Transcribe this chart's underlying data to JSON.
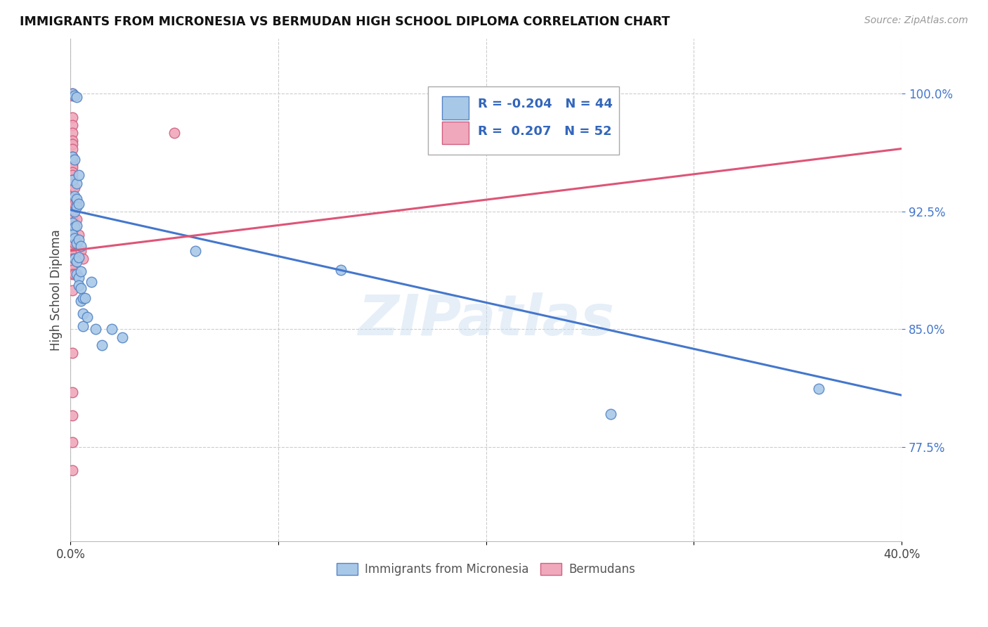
{
  "title": "IMMIGRANTS FROM MICRONESIA VS BERMUDAN HIGH SCHOOL DIPLOMA CORRELATION CHART",
  "source": "Source: ZipAtlas.com",
  "ylabel": "High School Diploma",
  "ytick_labels": [
    "77.5%",
    "85.0%",
    "92.5%",
    "100.0%"
  ],
  "ytick_values": [
    0.775,
    0.85,
    0.925,
    1.0
  ],
  "xlim": [
    0.0,
    0.4
  ],
  "ylim": [
    0.715,
    1.035
  ],
  "legend_blue_r": "-0.204",
  "legend_blue_n": "44",
  "legend_pink_r": "0.207",
  "legend_pink_n": "52",
  "blue_color": "#a8c8e8",
  "pink_color": "#f0a8bc",
  "blue_edge_color": "#5585c5",
  "pink_edge_color": "#d06080",
  "blue_line_color": "#4477cc",
  "pink_line_color": "#dd5577",
  "blue_scatter": [
    [
      0.001,
      1.0
    ],
    [
      0.002,
      0.999
    ],
    [
      0.003,
      0.998
    ],
    [
      0.001,
      0.96
    ],
    [
      0.002,
      0.958
    ],
    [
      0.001,
      0.945
    ],
    [
      0.003,
      0.943
    ],
    [
      0.004,
      0.948
    ],
    [
      0.002,
      0.935
    ],
    [
      0.003,
      0.933
    ],
    [
      0.002,
      0.925
    ],
    [
      0.003,
      0.928
    ],
    [
      0.004,
      0.93
    ],
    [
      0.001,
      0.918
    ],
    [
      0.002,
      0.915
    ],
    [
      0.003,
      0.916
    ],
    [
      0.001,
      0.91
    ],
    [
      0.002,
      0.908
    ],
    [
      0.003,
      0.905
    ],
    [
      0.004,
      0.907
    ],
    [
      0.005,
      0.903
    ],
    [
      0.002,
      0.895
    ],
    [
      0.003,
      0.893
    ],
    [
      0.004,
      0.896
    ],
    [
      0.003,
      0.885
    ],
    [
      0.004,
      0.883
    ],
    [
      0.005,
      0.887
    ],
    [
      0.004,
      0.878
    ],
    [
      0.005,
      0.876
    ],
    [
      0.005,
      0.868
    ],
    [
      0.006,
      0.87
    ],
    [
      0.006,
      0.86
    ],
    [
      0.006,
      0.852
    ],
    [
      0.007,
      0.87
    ],
    [
      0.008,
      0.858
    ],
    [
      0.01,
      0.88
    ],
    [
      0.012,
      0.85
    ],
    [
      0.015,
      0.84
    ],
    [
      0.02,
      0.85
    ],
    [
      0.025,
      0.845
    ],
    [
      0.06,
      0.9
    ],
    [
      0.13,
      0.888
    ],
    [
      0.26,
      0.796
    ],
    [
      0.36,
      0.812
    ]
  ],
  "pink_scatter": [
    [
      0.001,
      1.0
    ],
    [
      0.001,
      0.999
    ],
    [
      0.001,
      0.985
    ],
    [
      0.001,
      0.98
    ],
    [
      0.001,
      0.975
    ],
    [
      0.001,
      0.97
    ],
    [
      0.001,
      0.968
    ],
    [
      0.001,
      0.965
    ],
    [
      0.001,
      0.96
    ],
    [
      0.001,
      0.958
    ],
    [
      0.001,
      0.955
    ],
    [
      0.001,
      0.953
    ],
    [
      0.001,
      0.95
    ],
    [
      0.001,
      0.948
    ],
    [
      0.001,
      0.945
    ],
    [
      0.001,
      0.943
    ],
    [
      0.001,
      0.94
    ],
    [
      0.001,
      0.938
    ],
    [
      0.001,
      0.935
    ],
    [
      0.001,
      0.933
    ],
    [
      0.001,
      0.928
    ],
    [
      0.001,
      0.925
    ],
    [
      0.001,
      0.92
    ],
    [
      0.001,
      0.918
    ],
    [
      0.001,
      0.915
    ],
    [
      0.001,
      0.912
    ],
    [
      0.001,
      0.908
    ],
    [
      0.001,
      0.905
    ],
    [
      0.001,
      0.9
    ],
    [
      0.001,
      0.898
    ],
    [
      0.001,
      0.895
    ],
    [
      0.001,
      0.892
    ],
    [
      0.001,
      0.888
    ],
    [
      0.001,
      0.885
    ],
    [
      0.002,
      0.94
    ],
    [
      0.002,
      0.93
    ],
    [
      0.002,
      0.915
    ],
    [
      0.002,
      0.905
    ],
    [
      0.002,
      0.895
    ],
    [
      0.002,
      0.885
    ],
    [
      0.003,
      0.93
    ],
    [
      0.003,
      0.92
    ],
    [
      0.004,
      0.91
    ],
    [
      0.005,
      0.9
    ],
    [
      0.006,
      0.895
    ],
    [
      0.001,
      0.835
    ],
    [
      0.001,
      0.81
    ],
    [
      0.001,
      0.795
    ],
    [
      0.001,
      0.778
    ],
    [
      0.001,
      0.76
    ],
    [
      0.05,
      0.975
    ],
    [
      0.001,
      0.875
    ]
  ],
  "blue_trendline_x": [
    0.0,
    0.4
  ],
  "blue_trendline_y": [
    0.926,
    0.808
  ],
  "pink_trendline_x": [
    0.0,
    0.4
  ],
  "pink_trendline_y": [
    0.9,
    0.965
  ]
}
